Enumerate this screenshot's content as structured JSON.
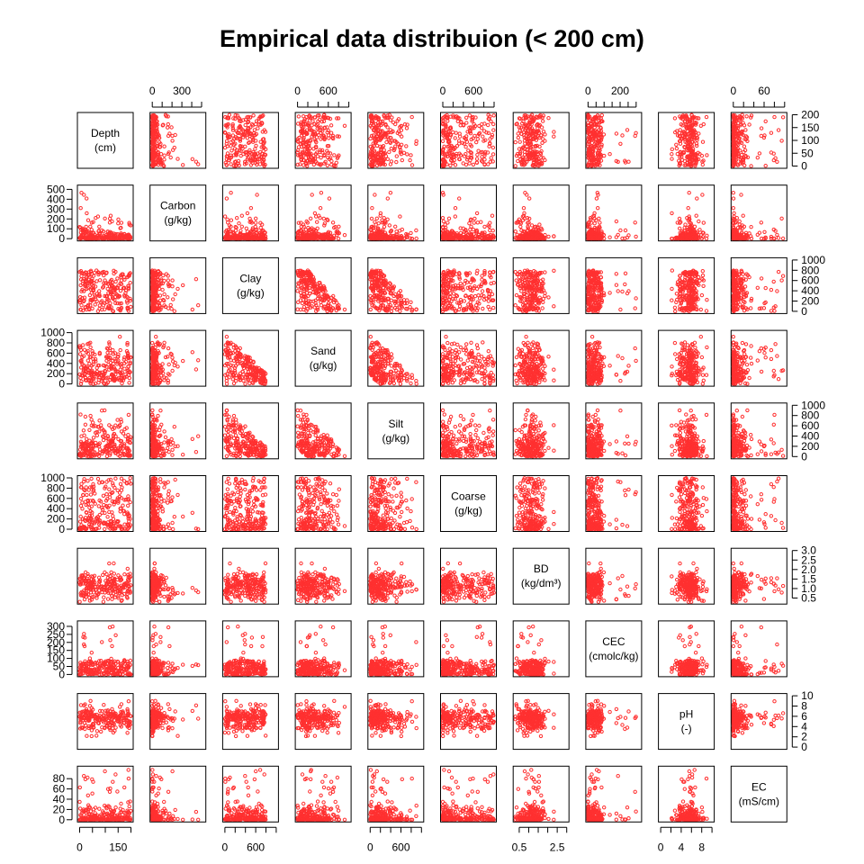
{
  "chart_data": {
    "type": "scatter",
    "kind": "scatterplot-matrix",
    "title": "Empirical data distribuion (< 200 cm)",
    "point_color": "#ff3030",
    "point_style": "open-circle",
    "variables": [
      {
        "name": "Depth",
        "unit": "(cm)",
        "range": [
          0,
          200
        ]
      },
      {
        "name": "Carbon",
        "unit": "(g/kg)",
        "range": [
          0,
          520
        ]
      },
      {
        "name": "Clay",
        "unit": "(g/kg)",
        "range": [
          0,
          1000
        ]
      },
      {
        "name": "Sand",
        "unit": "(g/kg)",
        "range": [
          0,
          1000
        ]
      },
      {
        "name": "Silt",
        "unit": "(g/kg)",
        "range": [
          0,
          1000
        ]
      },
      {
        "name": "Coarse",
        "unit": "(g/kg)",
        "range": [
          0,
          1000
        ]
      },
      {
        "name": "BD",
        "unit": "(kg/dm³)",
        "range": [
          0.3,
          3.0
        ]
      },
      {
        "name": "CEC",
        "unit": "(cmolc/kg)",
        "range": [
          0,
          320
        ]
      },
      {
        "name": "pH",
        "unit": "(-)",
        "range": [
          0,
          10
        ]
      },
      {
        "name": "EC",
        "unit": "(mS/cm)",
        "range": [
          0,
          100
        ]
      }
    ],
    "axes": {
      "top": [
        {
          "column": 1,
          "ticks": [
            0,
            300
          ],
          "minor": [
            0,
            100,
            200,
            300,
            400,
            500
          ]
        },
        {
          "column": 3,
          "ticks": [
            0,
            600
          ],
          "minor": [
            0,
            200,
            400,
            600,
            800,
            1000
          ]
        },
        {
          "column": 5,
          "ticks": [
            0,
            600
          ],
          "minor": [
            0,
            200,
            400,
            600,
            800,
            1000
          ]
        },
        {
          "column": 7,
          "ticks": [
            0,
            200
          ],
          "minor": [
            0,
            50,
            100,
            150,
            200,
            250,
            300
          ]
        },
        {
          "column": 9,
          "ticks": [
            0,
            60
          ],
          "minor": [
            0,
            20,
            40,
            60,
            80,
            100
          ]
        }
      ],
      "bottom": [
        {
          "column": 0,
          "ticks": [
            0,
            150
          ],
          "minor": [
            0,
            50,
            100,
            150,
            200
          ]
        },
        {
          "column": 2,
          "ticks": [
            0,
            600
          ],
          "minor": [
            0,
            200,
            400,
            600,
            800,
            1000
          ]
        },
        {
          "column": 4,
          "ticks": [
            0,
            600
          ],
          "minor": [
            0,
            200,
            400,
            600,
            800,
            1000
          ]
        },
        {
          "column": 6,
          "ticks": [
            0.5,
            2.5
          ],
          "minor": [
            0.5,
            1.0,
            1.5,
            2.0,
            2.5,
            3.0
          ]
        },
        {
          "column": 8,
          "ticks": [
            0,
            4,
            8
          ],
          "minor": [
            0,
            2,
            4,
            6,
            8,
            10
          ]
        }
      ],
      "left": [
        {
          "row": 1,
          "ticks": [
            0,
            100,
            200,
            300,
            400,
            500
          ]
        },
        {
          "row": 3,
          "ticks": [
            0,
            200,
            400,
            600,
            800,
            1000
          ]
        },
        {
          "row": 5,
          "ticks": [
            0,
            200,
            400,
            600,
            800,
            1000
          ]
        },
        {
          "row": 7,
          "ticks": [
            0,
            50,
            100,
            150,
            200,
            250,
            300
          ]
        },
        {
          "row": 9,
          "ticks": [
            0,
            20,
            40,
            60,
            80
          ]
        }
      ],
      "right": [
        {
          "row": 0,
          "ticks": [
            0,
            50,
            100,
            150,
            200
          ]
        },
        {
          "row": 2,
          "ticks": [
            0,
            200,
            400,
            600,
            800,
            1000
          ]
        },
        {
          "row": 4,
          "ticks": [
            0,
            200,
            400,
            600,
            800,
            1000
          ]
        },
        {
          "row": 6,
          "ticks": [
            0.5,
            1.0,
            1.5,
            2.0,
            2.5,
            3.0
          ]
        },
        {
          "row": 8,
          "ticks": [
            0,
            2,
            4,
            6,
            8,
            10
          ]
        }
      ]
    }
  }
}
